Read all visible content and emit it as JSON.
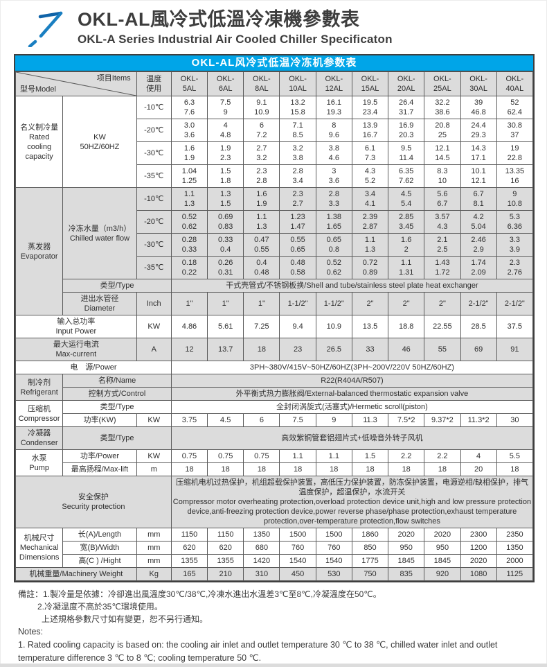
{
  "page": {
    "title_zh": "OKL-AL風冷式低溫冷凍機參數表",
    "title_en": "OKL-A Series Industrial Air Cooled Chiller Specificaton",
    "accent_blue": "#00a5e8",
    "logo_blue_dark": "#0f63a8",
    "logo_blue": "#1a7fc1",
    "section_gray": "#dcdcdc"
  },
  "table": {
    "title": "OKL-AL风冷式低温冷冻机参数表",
    "rows": [
      {
        "bg": "g",
        "cells": [
          {
            "diag": {
              "top": "项目Items",
              "bottom": "型号Model"
            },
            "cs": 2
          },
          {
            "t": "温度\n使用"
          },
          {
            "t": "OKL-\n5AL"
          },
          {
            "t": "OKL-\n6AL"
          },
          {
            "t": "OKL-\n8AL"
          },
          {
            "t": "OKL-\n10AL"
          },
          {
            "t": "OKL-\n12AL"
          },
          {
            "t": "OKL-\n15AL"
          },
          {
            "t": "OKL-\n20AL"
          },
          {
            "t": "OKL-\n25AL"
          },
          {
            "t": "OKL-\n30AL"
          },
          {
            "t": "OKL-\n40AL"
          }
        ]
      },
      {
        "bg": "w",
        "cells": [
          {
            "t": "名义制冷量\nRated\ncooling\ncapacity",
            "rs": 4
          },
          {
            "t": "KW\n50HZ/60HZ",
            "rs": 4
          },
          {
            "t": "-10℃"
          },
          {
            "t": "6.3\n7.6"
          },
          {
            "t": "7.5\n9"
          },
          {
            "t": "9.1\n10.9"
          },
          {
            "t": "13.2\n15.8"
          },
          {
            "t": "16.1\n19.3"
          },
          {
            "t": "19.5\n23.4"
          },
          {
            "t": "26.4\n31.7"
          },
          {
            "t": "32.2\n38.6"
          },
          {
            "t": "39\n46.8"
          },
          {
            "t": "52\n62.4"
          }
        ]
      },
      {
        "bg": "w",
        "cells": [
          {
            "t": "-20℃"
          },
          {
            "t": "3.0\n3.6"
          },
          {
            "t": "4\n4.8"
          },
          {
            "t": "6\n7.2"
          },
          {
            "t": "7.1\n8.5"
          },
          {
            "t": "8\n9.6"
          },
          {
            "t": "13.9\n16.7"
          },
          {
            "t": "16.9\n20.3"
          },
          {
            "t": "20.8\n25"
          },
          {
            "t": "24.4\n29.3"
          },
          {
            "t": "30.8\n37"
          }
        ]
      },
      {
        "bg": "w",
        "cells": [
          {
            "t": "-30℃"
          },
          {
            "t": "1.6\n1.9"
          },
          {
            "t": "1.9\n2.3"
          },
          {
            "t": "2.7\n3.2"
          },
          {
            "t": "3.2\n3.8"
          },
          {
            "t": "3.8\n4.6"
          },
          {
            "t": "6.1\n7.3"
          },
          {
            "t": "9.5\n11.4"
          },
          {
            "t": "12.1\n14.5"
          },
          {
            "t": "14.3\n17.1"
          },
          {
            "t": "19\n22.8"
          }
        ]
      },
      {
        "bg": "w",
        "cells": [
          {
            "t": "-35℃"
          },
          {
            "t": "1.04\n1.25"
          },
          {
            "t": "1.5\n1.8"
          },
          {
            "t": "2.3\n2.8"
          },
          {
            "t": "2.8\n3.4"
          },
          {
            "t": "3\n3.6"
          },
          {
            "t": "4.3\n5.2"
          },
          {
            "t": "6.35\n7.62"
          },
          {
            "t": "8.3\n10"
          },
          {
            "t": "10.1\n12.1"
          },
          {
            "t": "13.35\n16"
          }
        ]
      },
      {
        "bg": "g",
        "cells": [
          {
            "t": "蒸发器\nEvaporator",
            "rs": 6
          },
          {
            "t": "冷冻水量（m3/h）\nChilled water flow",
            "rs": 4
          },
          {
            "t": "-10℃"
          },
          {
            "t": "1.1\n1.3"
          },
          {
            "t": "1.3\n1.5"
          },
          {
            "t": "1.6\n1.9"
          },
          {
            "t": "2.3\n2.7"
          },
          {
            "t": "2.8\n3.3"
          },
          {
            "t": "3.4\n4.1"
          },
          {
            "t": "4.5\n5.4"
          },
          {
            "t": "5.6\n6.7"
          },
          {
            "t": "6.7\n8.1"
          },
          {
            "t": "9\n10.8"
          }
        ]
      },
      {
        "bg": "g",
        "cells": [
          {
            "t": "-20℃"
          },
          {
            "t": "0.52\n0.62"
          },
          {
            "t": "0.69\n0.83"
          },
          {
            "t": "1.1\n1.3"
          },
          {
            "t": "1.23\n1.47"
          },
          {
            "t": "1.38\n1.65"
          },
          {
            "t": "2.39\n2.87"
          },
          {
            "t": "2.85\n3.45"
          },
          {
            "t": "3.57\n4.3"
          },
          {
            "t": "4.2\n5.04"
          },
          {
            "t": "5.3\n6.36"
          }
        ]
      },
      {
        "bg": "g",
        "cells": [
          {
            "t": "-30℃"
          },
          {
            "t": "0.28\n0.33"
          },
          {
            "t": "0.33\n0.4"
          },
          {
            "t": "0.47\n0.55"
          },
          {
            "t": "0.55\n0.65"
          },
          {
            "t": "0.65\n0.8"
          },
          {
            "t": "1.1\n1.3"
          },
          {
            "t": "1.6\n2"
          },
          {
            "t": "2.1\n2.5"
          },
          {
            "t": "2.46\n2.9"
          },
          {
            "t": "3.3\n3.9"
          }
        ]
      },
      {
        "bg": "g",
        "cells": [
          {
            "t": "-35℃"
          },
          {
            "t": "0.18\n0.22"
          },
          {
            "t": "0.26\n0.31"
          },
          {
            "t": "0.4\n0.48"
          },
          {
            "t": "0.48\n0.58"
          },
          {
            "t": "0.52\n0.62"
          },
          {
            "t": "0.72\n0.89"
          },
          {
            "t": "1.1\n1.31"
          },
          {
            "t": "1.43\n1.72"
          },
          {
            "t": "1.74\n2.09"
          },
          {
            "t": "2.3\n2.76"
          }
        ]
      },
      {
        "bg": "g",
        "cells": [
          {
            "t": "类型/Type",
            "cs": 2
          },
          {
            "t": "干式壳管式/不锈钢板换/Shell and tube/stainless steel plate heat exchanger",
            "cs": 10
          }
        ]
      },
      {
        "bg": "g",
        "cells": [
          {
            "t": "进出水管径\nDiameter"
          },
          {
            "t": "Inch"
          },
          {
            "t": "1\""
          },
          {
            "t": "1\""
          },
          {
            "t": "1\""
          },
          {
            "t": "1-1/2\""
          },
          {
            "t": "1-1/2\""
          },
          {
            "t": "2\""
          },
          {
            "t": "2\""
          },
          {
            "t": "2\""
          },
          {
            "t": "2-1/2\""
          },
          {
            "t": "2-1/2\""
          }
        ]
      },
      {
        "bg": "w",
        "cells": [
          {
            "t": "输入总功率\nInput Power",
            "cs": 2
          },
          {
            "t": "KW"
          },
          {
            "t": "4.86"
          },
          {
            "t": "5.61"
          },
          {
            "t": "7.25"
          },
          {
            "t": "9.4"
          },
          {
            "t": "10.9"
          },
          {
            "t": "13.5"
          },
          {
            "t": "18.8"
          },
          {
            "t": "22.55"
          },
          {
            "t": "28.5"
          },
          {
            "t": "37.5"
          }
        ]
      },
      {
        "bg": "g",
        "cells": [
          {
            "t": "最大运行电流\nMax-current",
            "cs": 2
          },
          {
            "t": "A"
          },
          {
            "t": "12"
          },
          {
            "t": "13.7"
          },
          {
            "t": "18"
          },
          {
            "t": "23"
          },
          {
            "t": "26.5"
          },
          {
            "t": "33"
          },
          {
            "t": "46"
          },
          {
            "t": "55"
          },
          {
            "t": "69"
          },
          {
            "t": "91"
          }
        ]
      },
      {
        "bg": "w",
        "cells": [
          {
            "t": "电　源/Power",
            "cs": 3
          },
          {
            "t": "3PH~380V/415V~50HZ/60HZ(3PH~200V/220V  50HZ/60HZ)",
            "cs": 10
          }
        ]
      },
      {
        "bg": "g",
        "cells": [
          {
            "t": "制冷剂\nRefrigerant",
            "rs": 2
          },
          {
            "t": "名称/Name",
            "cs": 2
          },
          {
            "t": "R22(R404A/R507)",
            "cs": 10
          }
        ]
      },
      {
        "bg": "g",
        "cells": [
          {
            "t": "控制方式/Control",
            "cs": 2
          },
          {
            "t": "外平衡式热力膨胀阀/External-balanced thermostatic expansion valve",
            "cs": 10
          }
        ]
      },
      {
        "bg": "w",
        "cells": [
          {
            "t": "压缩机\nCompressor",
            "rs": 2
          },
          {
            "t": "类型/Type",
            "cs": 2
          },
          {
            "t": "全封闭涡旋式(活塞式)/Hermetic scroll(piston)",
            "cs": 10
          }
        ]
      },
      {
        "bg": "w",
        "cells": [
          {
            "t": "功率(KW)"
          },
          {
            "t": "KW"
          },
          {
            "t": "3.75"
          },
          {
            "t": "4.5"
          },
          {
            "t": "6"
          },
          {
            "t": "7.5"
          },
          {
            "t": "9"
          },
          {
            "t": "11.3"
          },
          {
            "t": "7.5*2"
          },
          {
            "t": "9.37*2"
          },
          {
            "t": "11.3*2"
          },
          {
            "t": "30"
          }
        ]
      },
      {
        "bg": "g",
        "cells": [
          {
            "t": "冷凝器\nCondenser"
          },
          {
            "t": "类型/Type",
            "cs": 2
          },
          {
            "t": "高效紫铜管套铝翅片式+低噪音外转子风机",
            "cs": 10
          }
        ]
      },
      {
        "bg": "w",
        "cells": [
          {
            "t": "水泵\nPump",
            "rs": 2
          },
          {
            "t": "功率/Power"
          },
          {
            "t": "KW"
          },
          {
            "t": "0.75"
          },
          {
            "t": "0.75"
          },
          {
            "t": "0.75"
          },
          {
            "t": "1.1"
          },
          {
            "t": "1.1"
          },
          {
            "t": "1.5"
          },
          {
            "t": "2.2"
          },
          {
            "t": "2.2"
          },
          {
            "t": "4"
          },
          {
            "t": "5.5"
          }
        ]
      },
      {
        "bg": "w",
        "cells": [
          {
            "t": "最高扬程/Max-lift"
          },
          {
            "t": "m"
          },
          {
            "t": "18"
          },
          {
            "t": "18"
          },
          {
            "t": "18"
          },
          {
            "t": "18"
          },
          {
            "t": "18"
          },
          {
            "t": "18"
          },
          {
            "t": "18"
          },
          {
            "t": "18"
          },
          {
            "t": "20"
          },
          {
            "t": "18"
          }
        ]
      },
      {
        "bg": "g",
        "cells": [
          {
            "t": "安全保护\nSecurity protection",
            "cs": 3
          },
          {
            "t": "压缩机电机过热保护，机组超载保护装置，高低压力保护装置，防冻保护装置，电源逆相/缺相保护，排气温度保护，超温保护，水流开关\n Compressor motor overheating protection,overload protection device unit,high and low pressure protection device,anti-freezing protection device,power reverse phase/phase protection,exhaust temperature protection,over-temperature protection,flow switches",
            "cs": 10,
            "cls": "left"
          }
        ]
      },
      {
        "bg": "w",
        "cells": [
          {
            "t": "机械尺寸\nMechanical\nDimensions",
            "rs": 3
          },
          {
            "t": "长(A)/Length"
          },
          {
            "t": "mm"
          },
          {
            "t": "1150"
          },
          {
            "t": "1150"
          },
          {
            "t": "1350"
          },
          {
            "t": "1500"
          },
          {
            "t": "1500"
          },
          {
            "t": "1860"
          },
          {
            "t": "2020"
          },
          {
            "t": "2020"
          },
          {
            "t": "2300"
          },
          {
            "t": "2350"
          }
        ]
      },
      {
        "bg": "w",
        "cells": [
          {
            "t": "宽(B)/Width"
          },
          {
            "t": "mm"
          },
          {
            "t": "620"
          },
          {
            "t": "620"
          },
          {
            "t": "680"
          },
          {
            "t": "760"
          },
          {
            "t": "760"
          },
          {
            "t": "850"
          },
          {
            "t": "950"
          },
          {
            "t": "950"
          },
          {
            "t": "1200"
          },
          {
            "t": "1350"
          }
        ]
      },
      {
        "bg": "w",
        "cells": [
          {
            "t": "高(C ) /Hight"
          },
          {
            "t": "mm"
          },
          {
            "t": "1355"
          },
          {
            "t": "1355"
          },
          {
            "t": "1420"
          },
          {
            "t": "1540"
          },
          {
            "t": "1540"
          },
          {
            "t": "1775"
          },
          {
            "t": "1845"
          },
          {
            "t": "1845"
          },
          {
            "t": "2020"
          },
          {
            "t": "2000"
          }
        ]
      },
      {
        "bg": "g",
        "cells": [
          {
            "t": "机械重量/Machinery Weight",
            "cs": 2
          },
          {
            "t": "Kg"
          },
          {
            "t": "165"
          },
          {
            "t": "210"
          },
          {
            "t": "310"
          },
          {
            "t": "450"
          },
          {
            "t": "530"
          },
          {
            "t": "750"
          },
          {
            "t": "835"
          },
          {
            "t": "920"
          },
          {
            "t": "1080"
          },
          {
            "t": "1125"
          }
        ]
      }
    ]
  },
  "notes": {
    "zh1": "備註：1.製冷量是依據：冷卻進出風溫度30℃/38℃,冷凍水進出水溫差3℃至8℃,冷凝溫度在50℃。",
    "zh2": "2.冷凝溫度不高於35℃環境使用。",
    "zh3": "上述規格參數尺寸如有變更，恕不另行通知。",
    "en_head": "Notes:",
    "en1": "1. Rated cooling capacity is based on: the cooling air inlet and outlet temperature 30 ℃ to 38 ℃, chilled water inlet and outlet temperature difference 3 ℃ to 8 ℃; cooling temperature 50 ℃."
  }
}
